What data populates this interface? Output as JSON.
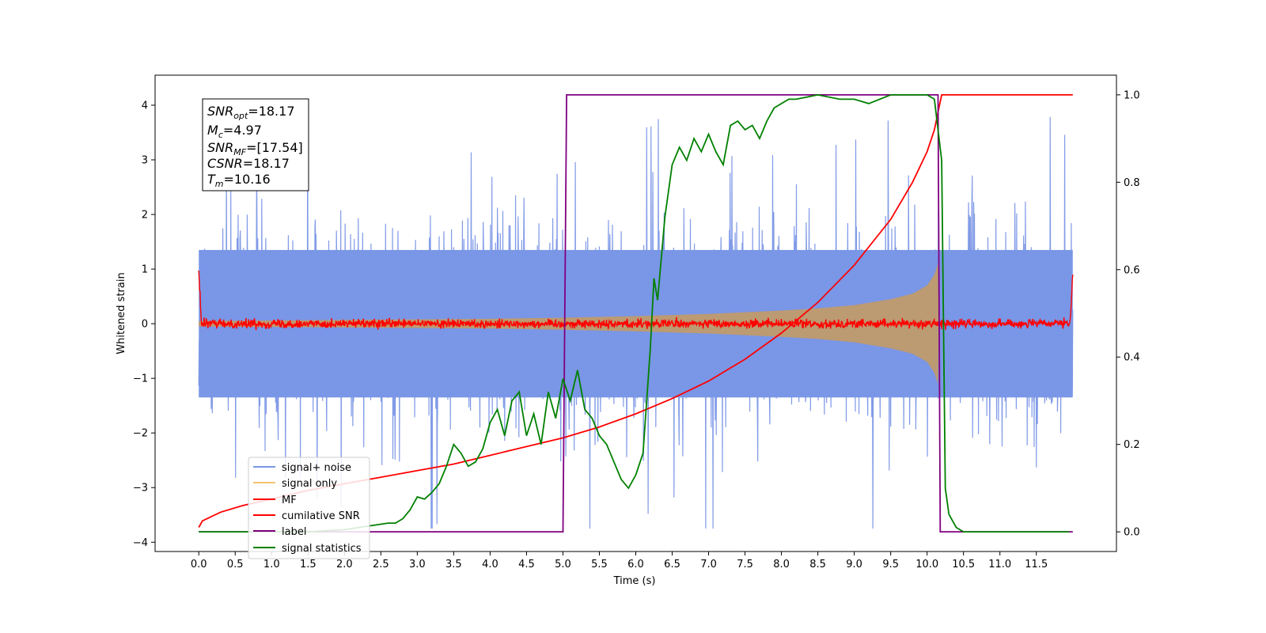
{
  "chart_data": {
    "type": "line",
    "xlabel": "Time (s)",
    "ylabel": "Whitened strain",
    "xlim": [
      -0.6,
      12.6
    ],
    "ylim": [
      -4.17,
      4.55
    ],
    "y2lim": [
      -0.045,
      1.045
    ],
    "x_ticks": [
      "0.0",
      "0.5",
      "1.0",
      "1.5",
      "2.0",
      "2.5",
      "3.0",
      "3.5",
      "4.0",
      "4.5",
      "5.0",
      "5.5",
      "6.0",
      "6.5",
      "7.0",
      "7.5",
      "8.0",
      "8.5",
      "9.0",
      "9.5",
      "10.0",
      "10.5",
      "11.0",
      "11.5"
    ],
    "y_ticks": [
      "4",
      "3",
      "2",
      "1",
      "0",
      "−1",
      "−2",
      "−3",
      "−4"
    ],
    "y2_ticks": [
      "1.0",
      "0.8",
      "0.6",
      "0.4",
      "0.2",
      "0.0"
    ],
    "grid": false,
    "legend_position": "lower-left",
    "legend": [
      {
        "label": "signal+ noise",
        "color": "#7a96e6"
      },
      {
        "label": "signal only",
        "color": "#f5c26b"
      },
      {
        "label": "MF",
        "color": "#ff0000"
      },
      {
        "label": "cumilative SNR",
        "color": "#ff0000"
      },
      {
        "label": "label",
        "color": "#7f007f"
      },
      {
        "label": "signal statistics",
        "color": "#008000"
      }
    ],
    "annotation": {
      "snr_opt": "18.17",
      "mc": "4.97",
      "snr_mf": "[17.54]",
      "csnr": "18.17",
      "tm": "10.16"
    },
    "series": [
      {
        "name": "signal+ noise",
        "axis": "left",
        "style": "dense noise band, amplitude about ±1.5 with spikes to about ±4",
        "x_range": [
          0.0,
          12.0
        ],
        "envelope_upper": 1.35,
        "envelope_lower": -1.35,
        "color": "#7a96e6"
      },
      {
        "name": "signal only",
        "axis": "left",
        "style": "chirp envelope, amplitude growing until merger then zero",
        "x": [
          0.0,
          1.0,
          2.0,
          3.0,
          4.0,
          5.0,
          6.0,
          7.0,
          8.0,
          8.5,
          9.0,
          9.5,
          9.8,
          10.0,
          10.1,
          10.15,
          10.16
        ],
        "amplitude": [
          0.05,
          0.06,
          0.07,
          0.08,
          0.09,
          0.11,
          0.14,
          0.18,
          0.24,
          0.28,
          0.34,
          0.45,
          0.55,
          0.7,
          0.9,
          1.1,
          0.0
        ],
        "color": "#bc9a72"
      },
      {
        "name": "MF",
        "axis": "left",
        "style": "noise around 0 with small amplitude, edge spikes to 1.0",
        "x_range": [
          0.0,
          12.0
        ],
        "amplitude": 0.08,
        "edge_value": 1.0,
        "color": "#ff0000"
      },
      {
        "name": "cumilative SNR",
        "axis": "right",
        "x": [
          0.0,
          0.05,
          0.3,
          0.6,
          1.0,
          1.5,
          2.0,
          2.5,
          3.0,
          3.5,
          4.0,
          4.5,
          5.0,
          5.5,
          6.0,
          6.5,
          7.0,
          7.5,
          8.0,
          8.5,
          9.0,
          9.5,
          9.8,
          10.0,
          10.1,
          10.15,
          10.2,
          12.0
        ],
        "values": [
          0.01,
          0.025,
          0.045,
          0.06,
          0.075,
          0.095,
          0.11,
          0.125,
          0.14,
          0.155,
          0.175,
          0.195,
          0.215,
          0.24,
          0.27,
          0.305,
          0.345,
          0.395,
          0.455,
          0.525,
          0.61,
          0.715,
          0.8,
          0.87,
          0.92,
          0.96,
          1.0,
          1.0
        ],
        "color": "#ff0000"
      },
      {
        "name": "label",
        "axis": "right",
        "x": [
          0.0,
          5.0,
          5.05,
          10.15,
          10.18,
          12.0
        ],
        "values": [
          0.0,
          0.0,
          1.0,
          1.0,
          0.0,
          0.0
        ],
        "color": "#7f007f"
      },
      {
        "name": "signal statistics",
        "axis": "right",
        "x": [
          0.0,
          0.5,
          1.0,
          1.5,
          2.0,
          2.2,
          2.4,
          2.6,
          2.7,
          2.8,
          2.9,
          3.0,
          3.1,
          3.2,
          3.3,
          3.4,
          3.5,
          3.6,
          3.7,
          3.8,
          3.9,
          4.0,
          4.1,
          4.2,
          4.3,
          4.4,
          4.5,
          4.6,
          4.7,
          4.8,
          4.9,
          5.0,
          5.1,
          5.2,
          5.3,
          5.4,
          5.5,
          5.6,
          5.7,
          5.8,
          5.9,
          6.0,
          6.1,
          6.2,
          6.25,
          6.3,
          6.4,
          6.5,
          6.6,
          6.7,
          6.8,
          6.9,
          7.0,
          7.1,
          7.2,
          7.3,
          7.4,
          7.5,
          7.6,
          7.7,
          7.8,
          7.9,
          8.0,
          8.1,
          8.2,
          8.5,
          8.8,
          9.0,
          9.2,
          9.5,
          9.8,
          10.0,
          10.1,
          10.2,
          10.25,
          10.3,
          10.4,
          10.5,
          11.0,
          11.5,
          11.95
        ],
        "values": [
          0.0,
          0.0,
          0.0,
          0.0,
          0.005,
          0.01,
          0.015,
          0.02,
          0.02,
          0.03,
          0.05,
          0.08,
          0.075,
          0.09,
          0.11,
          0.15,
          0.2,
          0.18,
          0.15,
          0.16,
          0.19,
          0.25,
          0.28,
          0.22,
          0.3,
          0.32,
          0.22,
          0.27,
          0.2,
          0.32,
          0.26,
          0.35,
          0.3,
          0.37,
          0.28,
          0.26,
          0.22,
          0.2,
          0.16,
          0.12,
          0.1,
          0.13,
          0.18,
          0.42,
          0.58,
          0.53,
          0.72,
          0.84,
          0.88,
          0.85,
          0.9,
          0.87,
          0.91,
          0.87,
          0.84,
          0.93,
          0.94,
          0.92,
          0.93,
          0.9,
          0.94,
          0.97,
          0.98,
          0.99,
          0.99,
          1.0,
          0.99,
          0.99,
          0.98,
          1.0,
          1.0,
          1.0,
          0.99,
          0.85,
          0.1,
          0.04,
          0.01,
          0.0,
          0.0,
          0.0,
          0.0
        ],
        "color": "#008000"
      }
    ]
  }
}
